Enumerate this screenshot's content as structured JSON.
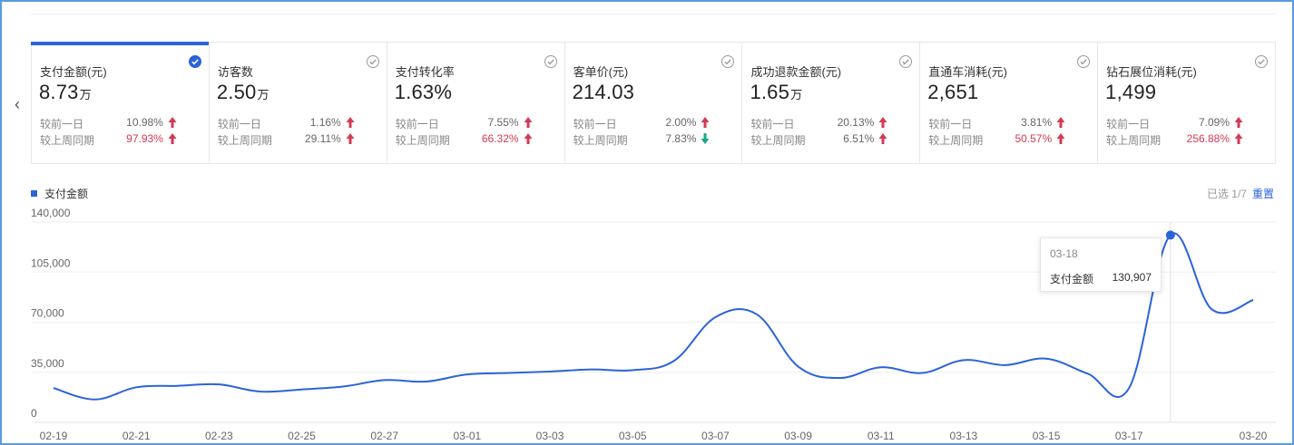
{
  "colors": {
    "accent": "#2b63d9",
    "up": "#d13b54",
    "down": "#1aa68a",
    "line": "#2b63d9"
  },
  "nav": {
    "prev_icon": "chevron-left-icon",
    "prev_glyph": "‹"
  },
  "cards": [
    {
      "title": "支付金额(元)",
      "value": "8.73",
      "unit": "万",
      "checked": true,
      "day_label": "较前一日",
      "day_value": "10.98%",
      "day_dir": "up",
      "day_hi": false,
      "week_label": "较上周同期",
      "week_value": "97.93%",
      "week_dir": "up",
      "week_hi": true
    },
    {
      "title": "访客数",
      "value": "2.50",
      "unit": "万",
      "checked": false,
      "day_label": "较前一日",
      "day_value": "1.16%",
      "day_dir": "up",
      "day_hi": false,
      "week_label": "较上周同期",
      "week_value": "29.11%",
      "week_dir": "up",
      "week_hi": false
    },
    {
      "title": "支付转化率",
      "value": "1.63%",
      "unit": "",
      "checked": false,
      "day_label": "较前一日",
      "day_value": "7.55%",
      "day_dir": "up",
      "day_hi": false,
      "week_label": "较上周同期",
      "week_value": "66.32%",
      "week_dir": "up",
      "week_hi": true
    },
    {
      "title": "客单价(元)",
      "value": "214.03",
      "unit": "",
      "checked": false,
      "day_label": "较前一日",
      "day_value": "2.00%",
      "day_dir": "up",
      "day_hi": false,
      "week_label": "较上周同期",
      "week_value": "7.83%",
      "week_dir": "down",
      "week_hi": false
    },
    {
      "title": "成功退款金额(元)",
      "value": "1.65",
      "unit": "万",
      "checked": false,
      "day_label": "较前一日",
      "day_value": "20.13%",
      "day_dir": "up",
      "day_hi": false,
      "week_label": "较上周同期",
      "week_value": "6.51%",
      "week_dir": "up",
      "week_hi": false
    },
    {
      "title": "直通车消耗(元)",
      "value": "2,651",
      "unit": "",
      "checked": false,
      "day_label": "较前一日",
      "day_value": "3.81%",
      "day_dir": "up",
      "day_hi": false,
      "week_label": "较上周同期",
      "week_value": "50.57%",
      "week_dir": "up",
      "week_hi": true
    },
    {
      "title": "钻石展位消耗(元)",
      "value": "1,499",
      "unit": "",
      "checked": false,
      "day_label": "较前一日",
      "day_value": "7.09%",
      "day_dir": "up",
      "day_hi": false,
      "week_label": "较上周同期",
      "week_value": "256.88%",
      "week_dir": "up",
      "week_hi": true
    }
  ],
  "legend": {
    "label": "支付金额"
  },
  "selection": {
    "text": "已选 1/7",
    "reset_label": "重置"
  },
  "tooltip": {
    "date": "03-18",
    "label": "支付金额",
    "value": "130,907"
  },
  "chart_data": {
    "type": "line",
    "series": [
      {
        "name": "支付金额",
        "values": [
          24000,
          16000,
          24500,
          25500,
          26500,
          21500,
          23000,
          25000,
          29500,
          28500,
          33500,
          34500,
          35500,
          37000,
          36500,
          43000,
          73500,
          75500,
          39000,
          31000,
          38500,
          34500,
          43500,
          40000,
          44500,
          34000,
          24000,
          130907,
          79000,
          85500
        ]
      }
    ],
    "x": [
      "02-19",
      "02-20",
      "02-21",
      "02-22",
      "02-23",
      "02-24",
      "02-25",
      "02-26",
      "02-27",
      "02-28",
      "03-01",
      "03-02",
      "03-03",
      "03-04",
      "03-05",
      "03-06",
      "03-07",
      "03-08",
      "03-09",
      "03-10",
      "03-11",
      "03-12",
      "03-13",
      "03-14",
      "03-15",
      "03-16",
      "03-17",
      "03-18",
      "03-19",
      "03-20"
    ],
    "xticks": [
      "02-19",
      "02-21",
      "02-23",
      "02-25",
      "02-27",
      "03-01",
      "03-03",
      "03-05",
      "03-07",
      "03-09",
      "03-11",
      "03-13",
      "03-15",
      "03-17",
      "03-20"
    ],
    "yticks": [
      "0",
      "35,000",
      "70,000",
      "105,000",
      "140,000"
    ],
    "ylim": [
      0,
      140000
    ],
    "grid": true,
    "highlight_index": 27
  }
}
